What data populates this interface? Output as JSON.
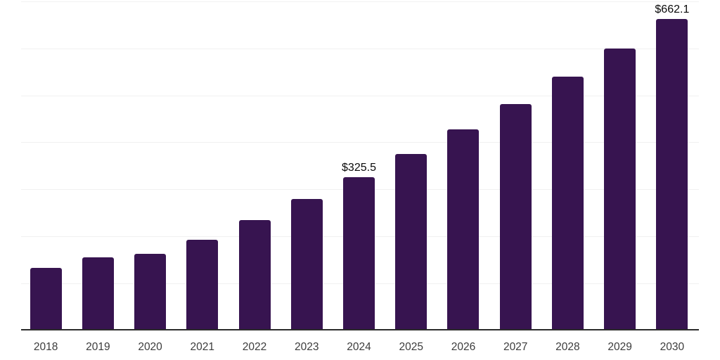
{
  "chart_data": {
    "type": "bar",
    "title": "",
    "xlabel": "",
    "ylabel": "",
    "categories": [
      "2018",
      "2019",
      "2020",
      "2021",
      "2022",
      "2023",
      "2024",
      "2025",
      "2026",
      "2027",
      "2028",
      "2029",
      "2030"
    ],
    "values": [
      132,
      155,
      162,
      192,
      234,
      279,
      325.5,
      375,
      428,
      482,
      540,
      599,
      662.1
    ],
    "point_labels": [
      null,
      null,
      null,
      null,
      null,
      null,
      "$325.5",
      null,
      null,
      null,
      null,
      null,
      "$662.1"
    ],
    "ylim": [
      0,
      700
    ],
    "gridline_step": 100,
    "grid": "horizontal-only",
    "legend_position": "none",
    "y_axis_tick_labels_visible": false,
    "colors": {
      "bar": "#371450",
      "axis_line": "#2b2b2b",
      "gridline": "#f1f1f1",
      "x_tick_label": "#3c3c3c",
      "data_label": "#0a0a0a",
      "background": "#ffffff"
    }
  }
}
